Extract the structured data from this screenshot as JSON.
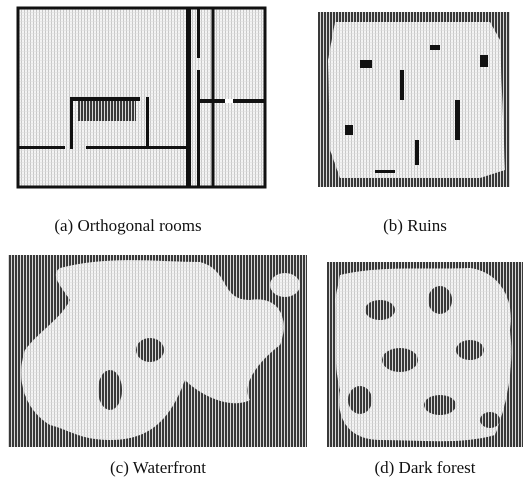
{
  "figures": [
    {
      "caption": "(a) Orthogonal rooms"
    },
    {
      "caption": "(b) Ruins"
    },
    {
      "caption": "(c) Waterfront"
    },
    {
      "caption": "(d) Dark forest"
    }
  ]
}
